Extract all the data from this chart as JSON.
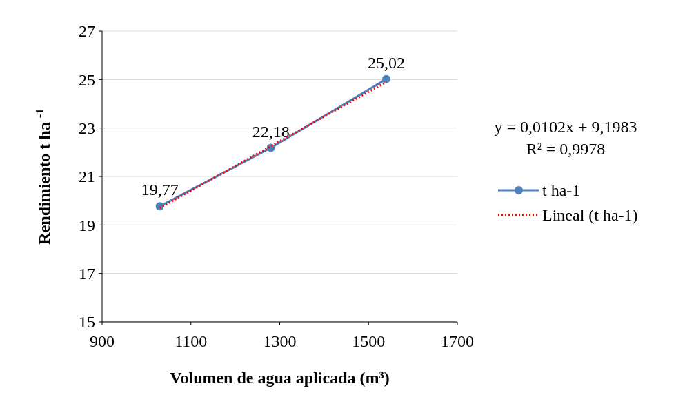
{
  "chart_data": {
    "type": "line",
    "xlabel": "Volumen de agua aplicada  (m³)",
    "ylabel": "Rendimiento t ha $^{-1}$",
    "xlim": [
      900,
      1700
    ],
    "xticks": [
      900,
      1100,
      1300,
      1500,
      1700
    ],
    "ylim": [
      15,
      27
    ],
    "yticks": [
      15,
      17,
      19,
      21,
      23,
      25,
      27
    ],
    "grid": "y",
    "legend": "right",
    "marker": "circle",
    "annotations": [
      "y = 0,0102x + 9,1983",
      "R² = 0,9978"
    ],
    "series": [
      {
        "name": "t ha-1",
        "color": "#4f81bd",
        "x": [
          1030,
          1280,
          1540
        ],
        "values": [
          19.77,
          22.18,
          25.02
        ],
        "value_labels": [
          "19,77",
          "22,18",
          "25,02"
        ]
      },
      {
        "name": "Lineal (t ha-1)",
        "color": "#ff0000",
        "type": "line",
        "x": [
          1030,
          1540
        ],
        "values": [
          19.7,
          24.9
        ],
        "marker": "none",
        "line_style": "dotted"
      }
    ]
  }
}
